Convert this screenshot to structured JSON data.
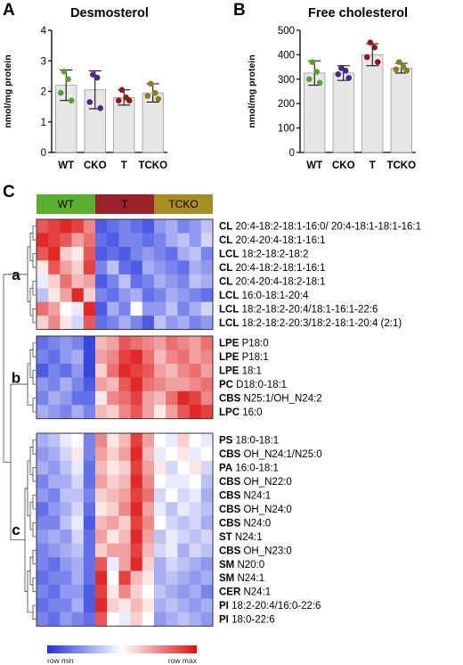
{
  "panels": {
    "A": "A",
    "B": "B",
    "C": "C"
  },
  "chart_data": [
    {
      "type": "bar",
      "title": "Desmosterol",
      "ylabel": "nmol/mg protein",
      "ylim": [
        0,
        4
      ],
      "yticks": [
        "0",
        "1",
        "2",
        "3",
        "4"
      ],
      "categories": [
        "WT",
        "CKO",
        "T",
        "TCKO"
      ],
      "values": [
        2.2,
        2.05,
        1.8,
        1.95
      ],
      "sd": [
        0.5,
        0.62,
        0.25,
        0.3
      ],
      "points": [
        [
          2.65,
          2.4,
          1.95,
          1.7
        ],
        [
          2.55,
          2.45,
          1.65,
          1.45
        ],
        [
          2.05,
          1.8,
          1.7,
          1.7
        ],
        [
          2.25,
          1.95,
          1.85,
          1.75
        ]
      ],
      "point_colors": [
        "#5a9e32",
        "#4b2585",
        "#8a1a1a",
        "#8c7d1e"
      ]
    },
    {
      "type": "bar",
      "title": "Free cholesterol",
      "ylabel": "nmol/mg protein",
      "ylim": [
        0,
        500
      ],
      "yticks": [
        "0",
        "100",
        "200",
        "300",
        "400",
        "500"
      ],
      "categories": [
        "WT",
        "CKO",
        "T",
        "TCKO"
      ],
      "values": [
        325,
        325,
        400,
        345
      ],
      "sd": [
        50,
        30,
        45,
        20
      ],
      "points": [
        [
          370,
          330,
          300,
          285
        ],
        [
          345,
          335,
          320,
          305
        ],
        [
          450,
          430,
          390,
          370
        ],
        [
          370,
          350,
          340,
          335
        ]
      ],
      "point_colors": [
        "#5a9e32",
        "#4b2585",
        "#8a1a1a",
        "#8c7d1e"
      ]
    },
    {
      "type": "heatmap",
      "groups": [
        {
          "name": "WT",
          "color": "#5cae2e",
          "n": 5
        },
        {
          "name": "T",
          "color": "#9b2228",
          "n": 5
        },
        {
          "name": "TCKO",
          "color": "#a88c24",
          "n": 5
        }
      ],
      "clusters": [
        {
          "label": "a",
          "rows": [
            {
              "bold": "CL",
              "rest": "20:4-18:2-18:1-16:0/ 20:4-18:1-18:1-16:1",
              "values": [
                0.85,
                0.9,
                0.95,
                0.9,
                0.75,
                0.1,
                0.15,
                0.2,
                0.15,
                0.1,
                0.25,
                0.3,
                0.2,
                0.25,
                0.35
              ]
            },
            {
              "bold": "CL",
              "rest": "20:4-20:4-18:1-16:1",
              "values": [
                0.95,
                0.9,
                0.85,
                0.7,
                0.8,
                0.15,
                0.1,
                0.2,
                0.2,
                0.15,
                0.2,
                0.3,
                0.35,
                0.25,
                0.4
              ]
            },
            {
              "bold": "LCL",
              "rest": "18:2-18:2-18:2",
              "values": [
                0.85,
                0.95,
                0.6,
                0.55,
                0.85,
                0.1,
                0.15,
                0.1,
                0.2,
                0.25,
                0.2,
                0.15,
                0.3,
                0.35,
                0.2
              ]
            },
            {
              "bold": "CL",
              "rest": "20:4-18:2-18:1-16:1",
              "values": [
                0.55,
                0.85,
                0.7,
                0.6,
                0.9,
                0.2,
                0.35,
                0.15,
                0.1,
                0.3,
                0.25,
                0.2,
                0.15,
                0.3,
                0.25
              ]
            },
            {
              "bold": "CL",
              "rest": "20:4-20:4-18:2-18:1",
              "values": [
                0.45,
                0.6,
                0.8,
                0.65,
                0.7,
                0.1,
                0.2,
                0.35,
                0.15,
                0.2,
                0.3,
                0.25,
                0.2,
                0.35,
                0.3
              ]
            },
            {
              "bold": "LCL",
              "rest": "16:0-18:1-20:4",
              "values": [
                0.35,
                0.55,
                0.7,
                0.95,
                0.6,
                0.2,
                0.15,
                0.25,
                0.3,
                0.15,
                0.2,
                0.3,
                0.25,
                0.2,
                0.15
              ]
            },
            {
              "bold": "LCL",
              "rest": "18:2-18:2-20:4/18:1-16:1-22:6",
              "values": [
                0.8,
                0.7,
                0.5,
                0.45,
                0.95,
                0.1,
                0.3,
                0.2,
                0.5,
                0.25,
                0.25,
                0.35,
                0.2,
                0.3,
                0.4
              ]
            },
            {
              "bold": "LCL",
              "rest": "18:2-18:2-20:3/18:2-18:1-20:4 (2:1)",
              "values": [
                0.6,
                0.75,
                0.55,
                0.4,
                0.85,
                0.15,
                0.2,
                0.3,
                0.2,
                0.1,
                0.35,
                0.25,
                0.3,
                0.2,
                0.25
              ]
            }
          ]
        },
        {
          "label": "b",
          "rows": [
            {
              "bold": "LPE",
              "rest": "P18:0",
              "values": [
                0.15,
                0.2,
                0.25,
                0.2,
                0.05,
                0.65,
                0.7,
                0.85,
                0.8,
                0.75,
                0.7,
                0.8,
                0.75,
                0.7,
                0.8
              ]
            },
            {
              "bold": "LPE",
              "rest": "P18:1",
              "values": [
                0.2,
                0.15,
                0.25,
                0.3,
                0.05,
                0.7,
                0.75,
                0.9,
                0.95,
                0.8,
                0.65,
                0.75,
                0.8,
                0.7,
                0.75
              ]
            },
            {
              "bold": "LPE",
              "rest": "18:1",
              "values": [
                0.1,
                0.2,
                0.15,
                0.25,
                0.05,
                0.6,
                0.8,
                0.95,
                0.9,
                0.85,
                0.7,
                0.65,
                0.75,
                0.8,
                0.7
              ]
            },
            {
              "bold": "PC",
              "rest": "D18:0-18:1",
              "values": [
                0.25,
                0.2,
                0.3,
                0.2,
                0.1,
                0.7,
                0.65,
                0.85,
                0.95,
                0.8,
                0.75,
                0.7,
                0.7,
                0.75,
                0.8
              ]
            },
            {
              "bold": "CBS",
              "rest": "N25:1/OH_N24:2",
              "values": [
                0.2,
                0.3,
                0.25,
                0.15,
                0.15,
                0.55,
                0.75,
                0.8,
                0.9,
                0.7,
                0.65,
                0.8,
                0.95,
                0.9,
                0.75
              ]
            },
            {
              "bold": "LPC",
              "rest": "16:0",
              "values": [
                0.3,
                0.25,
                0.2,
                0.3,
                0.2,
                0.65,
                0.6,
                0.75,
                0.85,
                0.7,
                0.55,
                0.7,
                0.85,
                0.95,
                0.9
              ]
            }
          ]
        },
        {
          "label": "c",
          "rows": [
            {
              "bold": "PS",
              "rest": "18:0-18:1",
              "values": [
                0.3,
                0.35,
                0.45,
                0.5,
                0.2,
                0.75,
                0.55,
                0.65,
                0.9,
                0.7,
                0.5,
                0.45,
                0.6,
                0.5,
                0.45
              ]
            },
            {
              "bold": "CBS",
              "rest": "OH_N24:1/N25:0",
              "values": [
                0.25,
                0.3,
                0.4,
                0.55,
                0.2,
                0.7,
                0.6,
                0.7,
                0.95,
                0.65,
                0.45,
                0.5,
                0.55,
                0.45,
                0.5
              ]
            },
            {
              "bold": "PA",
              "rest": "16:0-18:1",
              "values": [
                0.3,
                0.25,
                0.35,
                0.45,
                0.15,
                0.65,
                0.55,
                0.6,
                0.9,
                0.7,
                0.55,
                0.4,
                0.5,
                0.55,
                0.4
              ]
            },
            {
              "bold": "CBS",
              "rest": "OH_N22:0",
              "values": [
                0.2,
                0.3,
                0.3,
                0.4,
                0.15,
                0.7,
                0.6,
                0.65,
                0.95,
                0.75,
                0.5,
                0.45,
                0.45,
                0.5,
                0.35
              ]
            },
            {
              "bold": "CBS",
              "rest": "N24:1",
              "values": [
                0.25,
                0.2,
                0.35,
                0.35,
                0.2,
                0.6,
                0.65,
                0.7,
                0.9,
                0.8,
                0.4,
                0.5,
                0.4,
                0.45,
                0.3
              ]
            },
            {
              "bold": "CBS",
              "rest": "OH_N24:0",
              "values": [
                0.15,
                0.25,
                0.3,
                0.4,
                0.15,
                0.55,
                0.6,
                0.75,
                0.95,
                0.7,
                0.45,
                0.35,
                0.45,
                0.4,
                0.35
              ]
            },
            {
              "bold": "CBS",
              "rest": "N24:0",
              "values": [
                0.2,
                0.2,
                0.35,
                0.45,
                0.1,
                0.65,
                0.7,
                0.6,
                0.9,
                0.75,
                0.5,
                0.4,
                0.35,
                0.4,
                0.3
              ]
            },
            {
              "bold": "ST",
              "rest": "N24:1",
              "values": [
                0.25,
                0.3,
                0.25,
                0.4,
                0.15,
                0.7,
                0.55,
                0.65,
                0.95,
                0.7,
                0.35,
                0.45,
                0.4,
                0.35,
                0.4
              ]
            },
            {
              "bold": "CBS",
              "rest": "OH_N23:0",
              "values": [
                0.2,
                0.25,
                0.3,
                0.35,
                0.15,
                0.6,
                0.7,
                0.7,
                0.9,
                0.65,
                0.4,
                0.45,
                0.3,
                0.4,
                0.35
              ]
            },
            {
              "bold": "SM",
              "rest": "N20:0",
              "values": [
                0.2,
                0.15,
                0.25,
                0.3,
                0.15,
                0.85,
                0.45,
                0.7,
                0.95,
                0.6,
                0.3,
                0.4,
                0.35,
                0.3,
                0.25
              ]
            },
            {
              "bold": "SM",
              "rest": "N24:1",
              "values": [
                0.15,
                0.2,
                0.2,
                0.3,
                0.15,
                0.95,
                0.5,
                0.9,
                0.65,
                0.55,
                0.3,
                0.35,
                0.3,
                0.25,
                0.3
              ]
            },
            {
              "bold": "CER",
              "rest": "N24:1",
              "values": [
                0.2,
                0.15,
                0.25,
                0.25,
                0.1,
                0.9,
                0.55,
                0.75,
                0.6,
                0.5,
                0.35,
                0.3,
                0.25,
                0.3,
                0.2
              ]
            },
            {
              "bold": "PI",
              "rest": "18:2-20:4/16:0-22:6",
              "values": [
                0.15,
                0.2,
                0.2,
                0.3,
                0.1,
                0.95,
                0.6,
                0.55,
                0.65,
                0.55,
                0.3,
                0.35,
                0.3,
                0.25,
                0.3
              ]
            },
            {
              "bold": "PI",
              "rest": "18:0-22:6",
              "values": [
                0.2,
                0.15,
                0.25,
                0.2,
                0.15,
                0.85,
                0.5,
                0.45,
                0.6,
                0.5,
                0.25,
                0.3,
                0.35,
                0.3,
                0.25
              ]
            }
          ]
        }
      ],
      "scale": {
        "min_label": "row min",
        "max_label": "row max",
        "min_color": "#2233dd",
        "mid_color": "#ffffff",
        "max_color": "#dd1111"
      }
    }
  ]
}
